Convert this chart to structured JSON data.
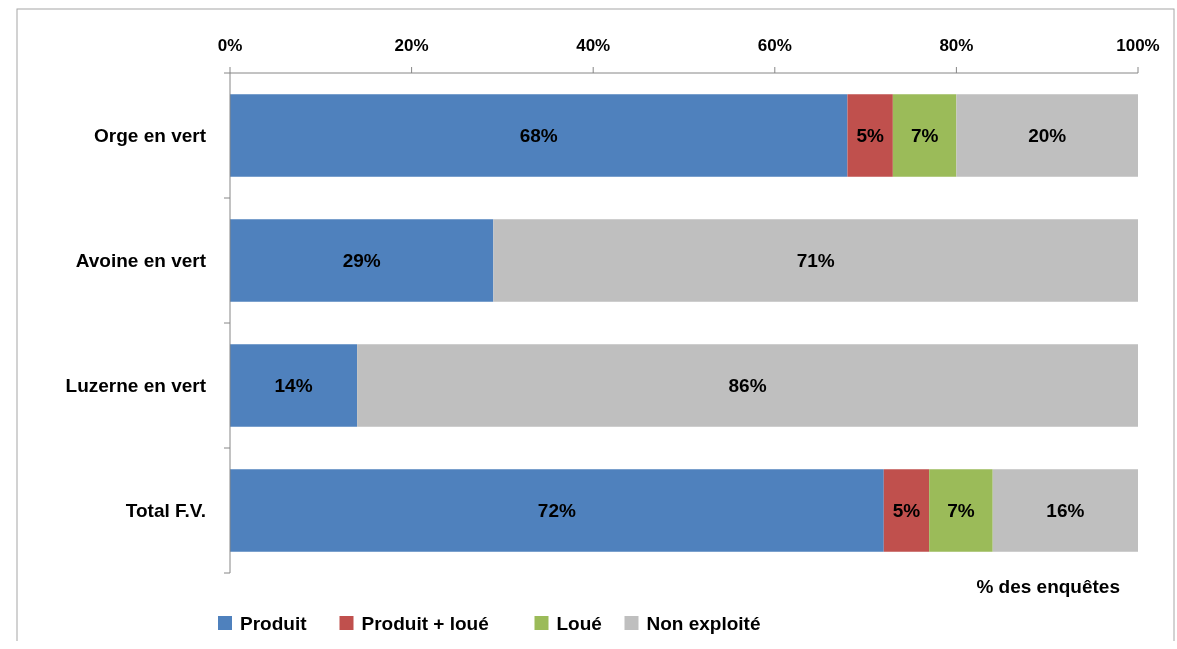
{
  "chart_data": {
    "type": "bar",
    "orientation": "horizontal",
    "stacked": true,
    "categories": [
      "Orge en vert",
      "Avoine en vert",
      "Luzerne en vert",
      "Total F.V."
    ],
    "series": [
      {
        "name": "Produit",
        "color": "#4f81bd",
        "values": [
          68,
          29,
          14,
          72
        ],
        "value_labels": [
          "68%",
          "29%",
          "14%",
          "72%"
        ]
      },
      {
        "name": "Produit + loué",
        "color": "#c0504d",
        "values": [
          5,
          0,
          0,
          5
        ],
        "value_labels": [
          "5%",
          null,
          null,
          "5%"
        ]
      },
      {
        "name": "Loué",
        "color": "#9bbb59",
        "values": [
          7,
          0,
          0,
          7
        ],
        "value_labels": [
          "7%",
          null,
          null,
          "7%"
        ]
      },
      {
        "name": "Non exploité",
        "color": "#bfbfbf",
        "values": [
          20,
          71,
          86,
          16
        ],
        "value_labels": [
          "20%",
          "71%",
          "86%",
          "16%"
        ]
      }
    ],
    "xlim": [
      0,
      100
    ],
    "xticks": [
      {
        "value": 0,
        "label": "0%"
      },
      {
        "value": 20,
        "label": "20%"
      },
      {
        "value": 40,
        "label": "40%"
      },
      {
        "value": 60,
        "label": "60%"
      },
      {
        "value": 80,
        "label": "80%"
      },
      {
        "value": 100,
        "label": "100%"
      }
    ],
    "xlabel": "% des enquêtes",
    "legend": "bottom",
    "grid": false
  }
}
